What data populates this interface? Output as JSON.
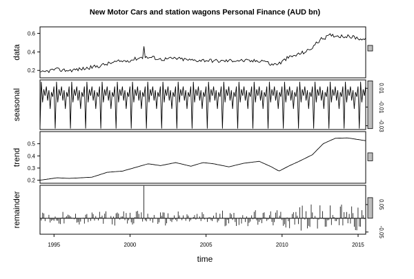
{
  "chart_data": {
    "type": "line",
    "title": "New Motor Cars and station wagons Personal Finance (AUD bn)",
    "xlabel": "time",
    "x_range": [
      1994.08,
      2015.5
    ],
    "x_ticks": [
      {
        "value": 1995,
        "label": "1995"
      },
      {
        "value": 2000,
        "label": "2000"
      },
      {
        "value": 2005,
        "label": "2005"
      },
      {
        "value": 2010,
        "label": "2010"
      },
      {
        "value": 2015,
        "label": "2015"
      }
    ],
    "scale_bar_color": "#bebebe",
    "panels": [
      {
        "name": "data",
        "ylabel": "data",
        "axis_side": "left",
        "ylim": [
          0.12,
          0.67
        ],
        "y_ticks": [
          {
            "value": 0.2,
            "label": "0.2"
          },
          {
            "value": 0.4,
            "label": "0.4"
          },
          {
            "value": 0.6,
            "label": "0.6"
          }
        ],
        "scale_bar": [
          0.41,
          0.47
        ],
        "style": "line",
        "knots": [
          [
            1994.08,
            0.17
          ],
          [
            1995.0,
            0.21
          ],
          [
            1996.0,
            0.2
          ],
          [
            1997.0,
            0.22
          ],
          [
            1998.0,
            0.25
          ],
          [
            1999.0,
            0.29
          ],
          [
            2000.0,
            0.31
          ],
          [
            2000.7,
            0.34
          ],
          [
            2001.5,
            0.34
          ],
          [
            2002.0,
            0.32
          ],
          [
            2003.0,
            0.33
          ],
          [
            2004.0,
            0.31
          ],
          [
            2005.0,
            0.31
          ],
          [
            2006.0,
            0.3
          ],
          [
            2007.0,
            0.31
          ],
          [
            2008.0,
            0.3
          ],
          [
            2008.8,
            0.31
          ],
          [
            2009.3,
            0.26
          ],
          [
            2009.9,
            0.28
          ],
          [
            2010.3,
            0.33
          ],
          [
            2011.0,
            0.37
          ],
          [
            2011.8,
            0.42
          ],
          [
            2012.5,
            0.53
          ],
          [
            2013.2,
            0.58
          ],
          [
            2014.0,
            0.57
          ],
          [
            2014.7,
            0.56
          ],
          [
            2015.5,
            0.53
          ]
        ],
        "spikes": [
          [
            2000.92,
            0.46
          ]
        ],
        "noise": 0.02
      },
      {
        "name": "seasonal",
        "ylabel": "seasonal",
        "axis_side": "right",
        "ylim": [
          -0.034,
          0.019
        ],
        "y_ticks": [
          {
            "value": 0.01,
            "label": "0.01"
          },
          {
            "value": -0.01,
            "label": "-0.01"
          },
          {
            "value": -0.03,
            "label": "-0.03"
          }
        ],
        "scale_bar": [
          -0.033,
          0.018
        ],
        "style": "line",
        "period_pattern": [
          -0.033,
          0.017,
          -0.005,
          0.009,
          0.002,
          0.012,
          -0.003,
          0.008,
          -0.012,
          0.006,
          0.001,
          0.012
        ]
      },
      {
        "name": "trend",
        "ylabel": "trend",
        "axis_side": "left",
        "ylim": [
          0.175,
          0.6
        ],
        "y_ticks": [
          {
            "value": 0.2,
            "label": "0.2"
          },
          {
            "value": 0.3,
            "label": "0.3"
          },
          {
            "value": 0.4,
            "label": "0.4"
          },
          {
            "value": 0.5,
            "label": "0.5"
          }
        ],
        "scale_bar": [
          0.36,
          0.425
        ],
        "style": "line",
        "knots": [
          [
            1994.08,
            0.2
          ],
          [
            1995.2,
            0.22
          ],
          [
            1996.0,
            0.215
          ],
          [
            1997.5,
            0.225
          ],
          [
            1998.5,
            0.265
          ],
          [
            1999.5,
            0.275
          ],
          [
            2000.5,
            0.31
          ],
          [
            2001.2,
            0.335
          ],
          [
            2002.0,
            0.32
          ],
          [
            2003.0,
            0.345
          ],
          [
            2004.0,
            0.315
          ],
          [
            2004.8,
            0.345
          ],
          [
            2005.5,
            0.335
          ],
          [
            2006.5,
            0.31
          ],
          [
            2007.5,
            0.34
          ],
          [
            2008.5,
            0.355
          ],
          [
            2009.3,
            0.31
          ],
          [
            2009.8,
            0.275
          ],
          [
            2010.5,
            0.32
          ],
          [
            2011.2,
            0.36
          ],
          [
            2012.0,
            0.41
          ],
          [
            2012.7,
            0.5
          ],
          [
            2013.5,
            0.545
          ],
          [
            2014.3,
            0.548
          ],
          [
            2015.5,
            0.525
          ]
        ]
      },
      {
        "name": "remainder",
        "ylabel": "remainder",
        "axis_side": "right",
        "ylim": [
          -0.058,
          0.12
        ],
        "y_ticks": [
          {
            "value": 0.05,
            "label": "0.05"
          },
          {
            "value": -0.05,
            "label": "-0.05"
          }
        ],
        "scale_bar": [
          0.0,
          0.075
        ],
        "style": "bars",
        "baseline": 0.0,
        "spikes": [
          [
            2000.92,
            0.118
          ]
        ],
        "noise_amplitude": [
          [
            1994.08,
            0.025
          ],
          [
            2009.5,
            0.03
          ],
          [
            2011.0,
            0.05
          ],
          [
            2015.5,
            0.055
          ]
        ]
      }
    ]
  }
}
